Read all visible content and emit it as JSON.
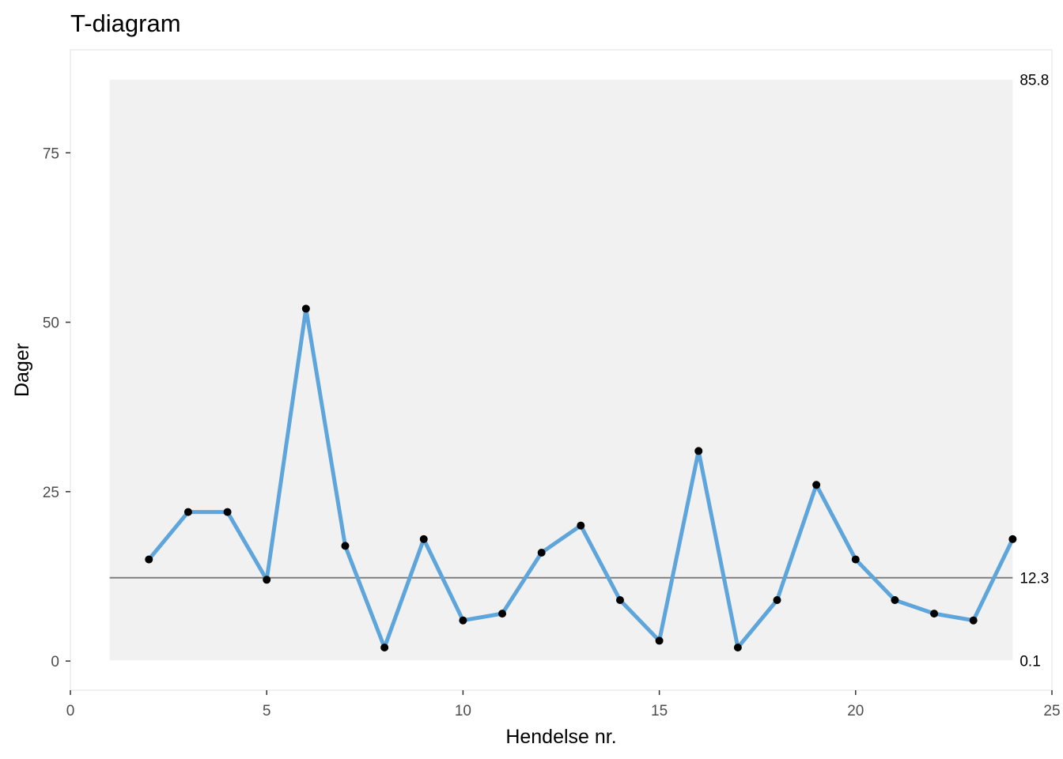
{
  "chart_data": {
    "type": "line",
    "title": "T-diagram",
    "xlabel": "Hendelse nr.",
    "ylabel": "Dager",
    "xlim": [
      0,
      25
    ],
    "ylim": [
      -4.3,
      90.2
    ],
    "x_ticks": [
      0,
      5,
      10,
      15,
      20,
      25
    ],
    "y_ticks": [
      0,
      25,
      50,
      75
    ],
    "grid": false,
    "series": [
      {
        "x": [
          2,
          3,
          4,
          5,
          6,
          7,
          8,
          9,
          10,
          11,
          12,
          13,
          14,
          15,
          16,
          17,
          18,
          19,
          20,
          21,
          22,
          23,
          24
        ],
        "values": [
          15,
          22,
          22,
          12,
          52,
          17,
          2,
          18,
          6,
          7,
          16,
          20,
          9,
          3,
          31,
          2,
          9,
          26,
          15,
          9,
          7,
          6,
          18
        ]
      }
    ],
    "center_line": {
      "value": 12.3,
      "label": "12.3"
    },
    "control_limits": {
      "upper": {
        "value": 85.8,
        "label": "85.8"
      },
      "lower": {
        "value": 0.1,
        "label": "0.1"
      },
      "x_range": [
        1,
        24
      ]
    },
    "colors": {
      "line": "#5DA5DA",
      "points": "#000000",
      "center_line": "#7f7f7f",
      "limit_band": "#F1F1F1",
      "panel_border": "#EBEBEB"
    }
  }
}
